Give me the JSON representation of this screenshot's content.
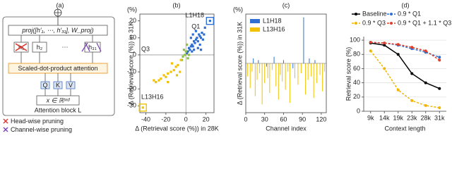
{
  "diagram": {
    "title": "(a)",
    "proj": "proj([h′₁, ⋯, h′₃₁], W_proj)",
    "heads": [
      "h₁",
      "h₂",
      "⋯",
      "h₃₁"
    ],
    "attention": "Scaled-dot-product attention",
    "qkv": [
      "Q",
      "K",
      "V"
    ],
    "input": "x ∈ ℝᵗˣᵈ",
    "block": "Attention block L",
    "legend": [
      "Head-wise pruning",
      "Channel-wise pruning"
    ]
  },
  "chart_data": [
    {
      "type": "scatter",
      "title": "(b)",
      "y_unit": "(%)",
      "xlabel": "Δ (Retrieval score (%)) in 28K",
      "ylabel": "Δ (Retrieval score (%)) in 31K",
      "xlim": [
        -46,
        28
      ],
      "xticks": [
        -40,
        -20,
        0,
        20
      ],
      "ylim": [
        -34,
        24
      ],
      "yticks": [
        -30,
        -20,
        -10,
        0,
        10,
        20
      ],
      "annotations": [
        "Q1",
        "Q3",
        "L1H18",
        "L13H16"
      ],
      "series": [
        {
          "color": "#2f6fd1",
          "x": [
            1,
            2,
            3,
            4,
            5,
            6,
            7,
            8,
            9,
            10,
            11,
            12,
            13,
            14,
            15,
            16,
            17,
            18,
            10,
            12,
            6,
            8,
            14,
            15,
            5,
            7,
            19,
            24
          ],
          "values": [
            1,
            2,
            4,
            3,
            5,
            6,
            5,
            8,
            7,
            9,
            10,
            8,
            12,
            11,
            10,
            13,
            9,
            12,
            14,
            4,
            2,
            3,
            6,
            3,
            10,
            12,
            16,
            20
          ]
        },
        {
          "color": "#8fbf4a",
          "x": [
            -3,
            -1,
            0,
            2,
            -2,
            1,
            3,
            -4
          ],
          "values": [
            -1,
            0,
            2,
            -2,
            3,
            6,
            0,
            -3
          ]
        },
        {
          "color": "#f2c200",
          "x": [
            -5,
            -8,
            -10,
            -12,
            -15,
            -18,
            -20,
            -22,
            -25,
            -27,
            -30,
            -32,
            -18,
            -14,
            -6,
            -9,
            -43
          ],
          "values": [
            -3,
            -6,
            -7,
            -9,
            -10,
            -11,
            -13,
            -12,
            -14,
            -15,
            -16,
            -15,
            -16,
            -5,
            -10,
            -12,
            -31
          ]
        }
      ]
    },
    {
      "type": "bar",
      "title": "(c)",
      "y_unit": "(%)",
      "xlabel": "Channel index",
      "ylabel": "Δ (Retrieval score (%)) in 31K",
      "xlim": [
        0,
        128
      ],
      "xticks": [
        0,
        30,
        60,
        90,
        120
      ],
      "ylim": [
        -30,
        30
      ],
      "series": [
        {
          "name": "L1H18",
          "color": "#2f6fd1",
          "x": [
            12,
            20,
            33,
            45,
            60,
            75,
            92,
            101,
            110
          ],
          "values": [
            3,
            2,
            -2,
            4,
            2,
            -3,
            28,
            3,
            2
          ]
        },
        {
          "name": "L13H16",
          "color": "#f2c200",
          "x": [
            3,
            7,
            10,
            15,
            18,
            22,
            26,
            30,
            35,
            38,
            42,
            48,
            52,
            55,
            58,
            63,
            67,
            70,
            78,
            83,
            88,
            95,
            99,
            104,
            108,
            113,
            118,
            122,
            125
          ],
          "values": [
            -8,
            -15,
            -5,
            -20,
            -10,
            -6,
            -25,
            -12,
            -9,
            -18,
            -4,
            -14,
            -22,
            -7,
            -11,
            -16,
            -5,
            -24,
            -9,
            -13,
            -6,
            -19,
            -10,
            -8,
            -21,
            -12,
            -7,
            -17,
            -5
          ]
        }
      ]
    },
    {
      "type": "line",
      "title": "(d)",
      "xlabel": "Context length",
      "ylabel": "Retrieval score (%)",
      "categories": [
        "9k",
        "14k",
        "19k",
        "23k",
        "28k",
        "31k"
      ],
      "ylim": [
        0,
        105
      ],
      "yticks": [
        0,
        20,
        40,
        60,
        80,
        100
      ],
      "grid": true,
      "series": [
        {
          "name": "Baseline",
          "color": "#000000",
          "dashed": false,
          "values": [
            96,
            93,
            80,
            53,
            40,
            32
          ]
        },
        {
          "name": "0.9 * Q1",
          "color": "#2f6fd1",
          "dashed": true,
          "values": [
            97,
            96,
            93,
            88,
            83,
            76
          ]
        },
        {
          "name": "0.9 * Q3",
          "color": "#f2b600",
          "dashed": true,
          "values": [
            85,
            60,
            30,
            15,
            8,
            5
          ]
        },
        {
          "name": "0.9 * Q1 + 1.1 * Q3",
          "color": "#e0402a",
          "dashed": true,
          "values": [
            97,
            96,
            94,
            90,
            85,
            72
          ]
        }
      ]
    }
  ]
}
